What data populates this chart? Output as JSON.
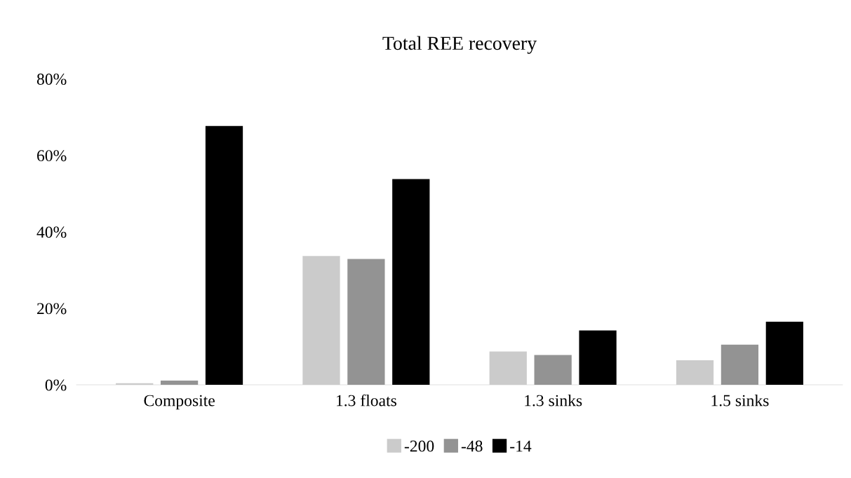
{
  "chart_data": {
    "type": "bar",
    "title": "Total REE recovery",
    "categories": [
      "Composite",
      "1.3 floats",
      "1.3 sinks",
      "1.5 sinks"
    ],
    "series": [
      {
        "name": "-200",
        "color": "#cbcbcb",
        "values": [
          0.4,
          33.7,
          8.7,
          6.4
        ]
      },
      {
        "name": "-48",
        "color": "#939393",
        "values": [
          1.1,
          32.9,
          7.8,
          10.5
        ]
      },
      {
        "name": "-14",
        "color": "#000000",
        "values": [
          67.7,
          53.8,
          14.2,
          16.5
        ]
      }
    ],
    "ylim": [
      0,
      80
    ],
    "yticks": [
      {
        "value": 0,
        "label": "0%"
      },
      {
        "value": 20,
        "label": "20%"
      },
      {
        "value": 40,
        "label": "40%"
      },
      {
        "value": 60,
        "label": "60%"
      },
      {
        "value": 80,
        "label": "80%"
      }
    ],
    "grid": false,
    "legend": "bottom"
  }
}
